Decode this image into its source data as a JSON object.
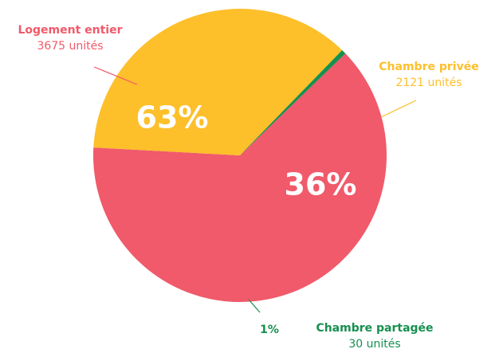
{
  "chart_data": {
    "type": "pie",
    "categories": [
      "Logement entier",
      "Chambre privée",
      "Chambre partagée"
    ],
    "values": [
      3675,
      2121,
      30
    ],
    "value_labels": [
      "3675 unités",
      "2121 unités",
      "30 unités"
    ],
    "percentages": [
      63,
      36,
      1
    ],
    "percentage_labels": [
      "63%",
      "36%",
      "1%"
    ],
    "colors": [
      "#f05a6a",
      "#fdbf2a",
      "#16904f"
    ]
  }
}
